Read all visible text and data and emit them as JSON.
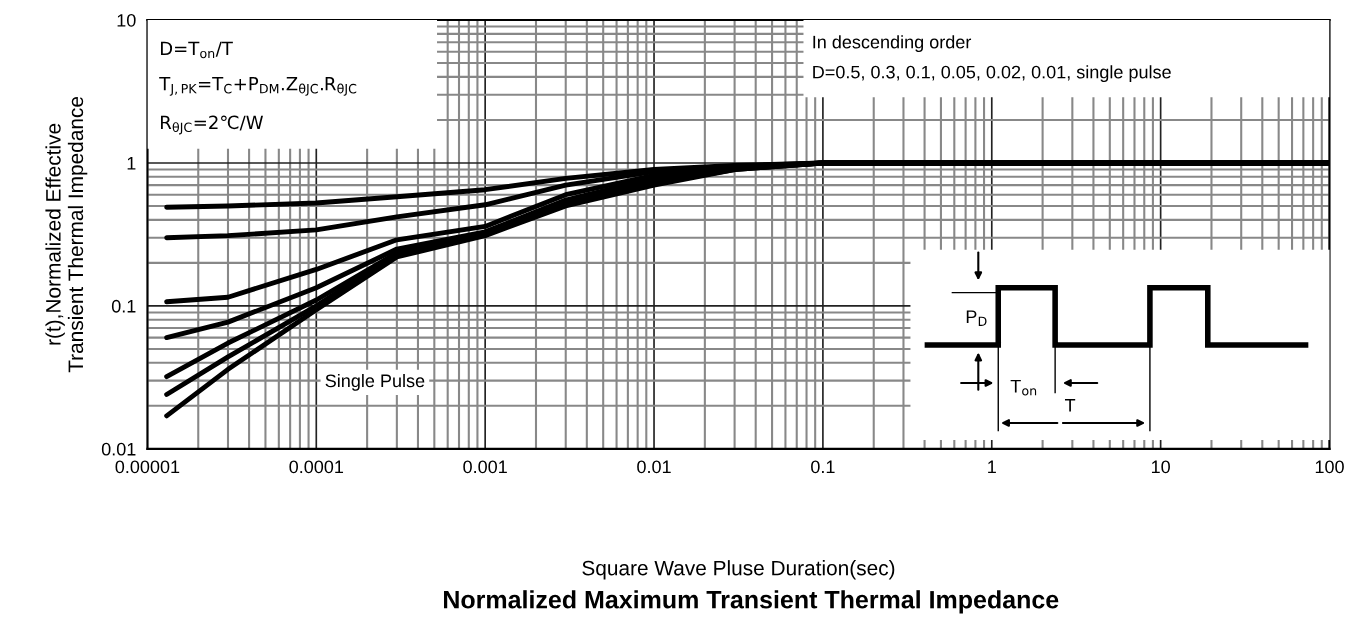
{
  "chart_data": {
    "type": "line",
    "xlabel": "Square Wave Pluse Duration(sec)",
    "ylabel": "r(t),Normalized Effective\nTransient Thermal Impedance",
    "title": "Normalized Maximum Transient Thermal Impedance",
    "log": "xy",
    "grid": true,
    "line_style": "solid",
    "xlim": [
      1e-05,
      100
    ],
    "xticks": [
      {
        "value": 1e-05,
        "label": "0.00001"
      },
      {
        "value": 0.0001,
        "label": "0.0001"
      },
      {
        "value": 0.001,
        "label": "0.001"
      },
      {
        "value": 0.01,
        "label": "0.01"
      },
      {
        "value": 0.1,
        "label": "0.1"
      },
      {
        "value": 1,
        "label": "1"
      },
      {
        "value": 10,
        "label": "10"
      },
      {
        "value": 100,
        "label": "100"
      }
    ],
    "ylim": [
      0.01,
      10
    ],
    "yticks": [
      0.01,
      0.1,
      1,
      10
    ],
    "x": [
      1.3e-05,
      3e-05,
      0.0001,
      0.0003,
      0.001,
      0.003,
      0.01,
      0.03,
      0.1,
      1,
      10,
      100
    ],
    "series": [
      {
        "color": "#000000",
        "values": [
          0.49,
          0.5,
          0.525,
          0.58,
          0.65,
          0.78,
          0.9,
          0.96,
          1,
          1,
          1,
          1
        ]
      },
      {
        "color": "#000000",
        "values": [
          0.3,
          0.31,
          0.34,
          0.42,
          0.51,
          0.7,
          0.87,
          0.95,
          1,
          1,
          1,
          1
        ]
      },
      {
        "color": "#000000",
        "values": [
          0.107,
          0.115,
          0.18,
          0.29,
          0.36,
          0.6,
          0.82,
          0.93,
          1,
          1,
          1,
          1
        ]
      },
      {
        "color": "#000000",
        "values": [
          0.06,
          0.077,
          0.134,
          0.25,
          0.33,
          0.55,
          0.78,
          0.92,
          1,
          1,
          1,
          1
        ]
      },
      {
        "color": "#000000",
        "values": [
          0.032,
          0.055,
          0.11,
          0.235,
          0.32,
          0.52,
          0.74,
          0.91,
          1,
          1,
          1,
          1
        ]
      },
      {
        "color": "#000000",
        "values": [
          0.024,
          0.044,
          0.1,
          0.23,
          0.32,
          0.51,
          0.72,
          0.9,
          1,
          1,
          1,
          1
        ]
      },
      {
        "color": "#000000",
        "values": [
          0.017,
          0.036,
          0.094,
          0.22,
          0.31,
          0.5,
          0.7,
          0.9,
          1,
          1,
          1,
          1
        ]
      }
    ],
    "annotations": [
      "D=T$_{on}$/T",
      "T$_{J,PK}$=T$_{C}$+P$_{DM}$.Z$_{θJC}$.R$_{θJC}$",
      "R$_{θJC}$=2℃/W",
      "In descending order",
      "D=0.5, 0.3, 0.1, 0.05, 0.02, 0.01, single pulse",
      "Single Pulse",
      "P$_{D}$",
      "T$_{on}$",
      "T"
    ]
  }
}
